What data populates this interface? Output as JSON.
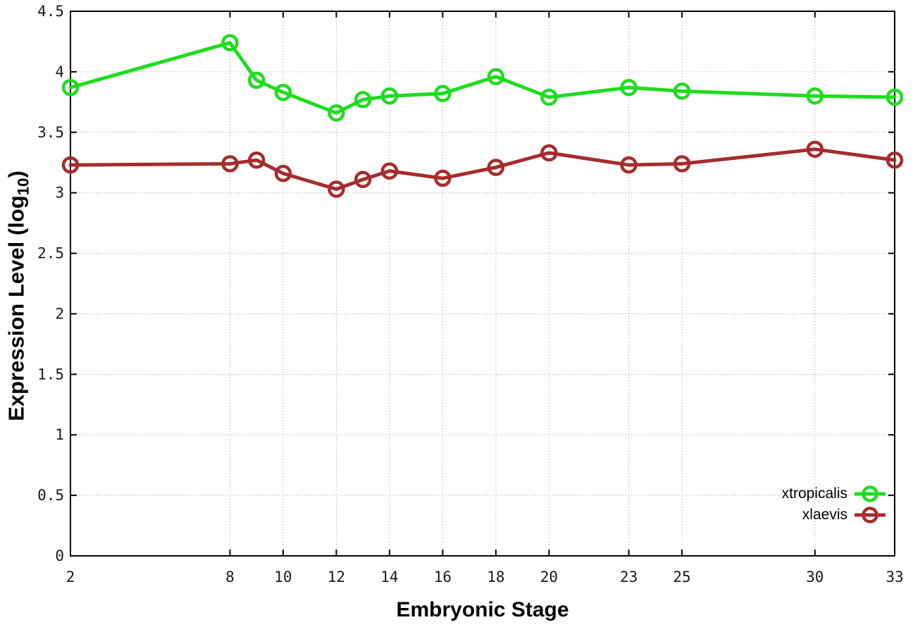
{
  "chart_data": {
    "type": "line",
    "title": "",
    "xlabel": "Embryonic Stage",
    "ylabel": "Expression Level (log10)",
    "ylabel_parts": {
      "text": "Expression Level (log",
      "subscript": "10",
      "close": ")"
    },
    "x": [
      2,
      8,
      9,
      10,
      12,
      13,
      14,
      16,
      18,
      20,
      23,
      25,
      30,
      33
    ],
    "series": [
      {
        "name": "xtropicalis",
        "color": "#1edc1e",
        "values": [
          3.87,
          4.24,
          3.93,
          3.83,
          3.66,
          3.77,
          3.8,
          3.82,
          3.96,
          3.79,
          3.87,
          3.84,
          3.8,
          3.79
        ]
      },
      {
        "name": "xlaevis",
        "color": "#a62c2c",
        "values": [
          3.23,
          3.24,
          3.27,
          3.16,
          3.03,
          3.11,
          3.18,
          3.12,
          3.21,
          3.33,
          3.23,
          3.24,
          3.36,
          3.27
        ]
      }
    ],
    "xlim": [
      2,
      33
    ],
    "ylim": [
      0,
      4.5
    ],
    "xticks": {
      "values": [
        2,
        8,
        10,
        12,
        14,
        16,
        18,
        20,
        23,
        25,
        30,
        33
      ],
      "labels": [
        "2",
        "8",
        "10",
        "12",
        "14",
        "16",
        "18",
        "20",
        "23",
        "25",
        "30",
        "33"
      ]
    },
    "yticks": {
      "values": [
        0,
        0.5,
        1,
        1.5,
        2,
        2.5,
        3,
        3.5,
        4,
        4.5
      ],
      "labels": [
        "0",
        "0.5",
        "1",
        "1.5",
        "2",
        "2.5",
        "3",
        "3.5",
        "4",
        "4.5"
      ]
    },
    "grid": true,
    "legend_position": "bottom-right",
    "marker": "open-circle"
  },
  "legend": {
    "items": [
      {
        "label": "xtropicalis",
        "color": "#1edc1e"
      },
      {
        "label": "xlaevis",
        "color": "#a62c2c"
      }
    ]
  },
  "colors": {
    "background": "#ffffff",
    "plot_border": "#000000",
    "grid": "#9b9b9b",
    "tick_label": "#191919"
  }
}
